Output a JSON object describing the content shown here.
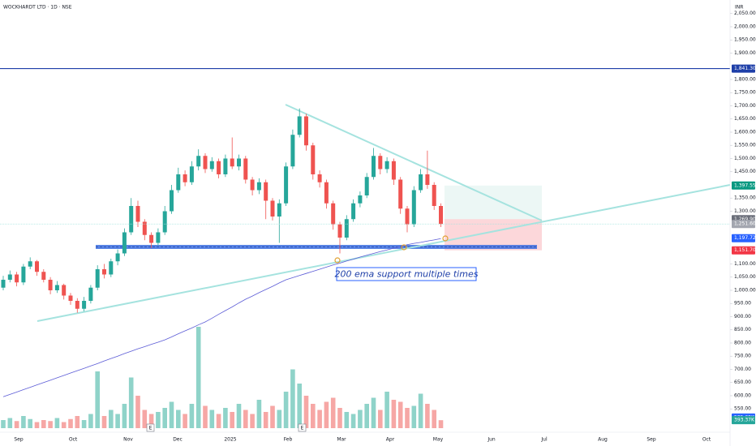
{
  "header": {
    "title": "WOCKHARDT LTD · 1D · NSE",
    "currency": "INR"
  },
  "chart_data": {
    "type": "candlestick",
    "open": [
      1010,
      1040,
      1060,
      1030,
      1090,
      1110,
      1070,
      1040,
      1000,
      1020,
      980,
      960,
      930,
      960,
      1010,
      1080,
      1060,
      1110,
      1140,
      1220,
      1320,
      1260,
      1210,
      1180,
      1220,
      1300,
      1380,
      1440,
      1410,
      1470,
      1510,
      1460,
      1490,
      1440,
      1500,
      1470,
      1500,
      1420,
      1380,
      1410,
      1340,
      1280,
      1330,
      1470,
      1590,
      1660,
      1550,
      1440,
      1410,
      1330,
      1250,
      1200,
      1270,
      1330,
      1360,
      1430,
      1510,
      1460,
      1490,
      1420,
      1310,
      1250,
      1380,
      1440,
      1400,
      1320
    ],
    "high": [
      1055,
      1075,
      1070,
      1100,
      1125,
      1115,
      1080,
      1050,
      1035,
      1025,
      990,
      970,
      975,
      1020,
      1095,
      1100,
      1120,
      1155,
      1235,
      1350,
      1340,
      1270,
      1220,
      1235,
      1320,
      1400,
      1465,
      1455,
      1490,
      1535,
      1520,
      1505,
      1500,
      1515,
      1580,
      1515,
      1510,
      1430,
      1425,
      1420,
      1350,
      1345,
      1485,
      1610,
      1690,
      1670,
      1560,
      1455,
      1420,
      1340,
      1260,
      1285,
      1345,
      1375,
      1445,
      1540,
      1520,
      1505,
      1500,
      1430,
      1320,
      1395,
      1460,
      1530,
      1410,
      1330
    ],
    "low": [
      1000,
      1030,
      1015,
      1020,
      1080,
      1055,
      1030,
      985,
      990,
      965,
      945,
      915,
      920,
      950,
      1000,
      1045,
      1050,
      1095,
      1130,
      1210,
      1240,
      1190,
      1160,
      1170,
      1210,
      1290,
      1370,
      1395,
      1400,
      1455,
      1445,
      1450,
      1425,
      1430,
      1460,
      1455,
      1405,
      1360,
      1365,
      1270,
      1265,
      1180,
      1320,
      1460,
      1580,
      1530,
      1420,
      1390,
      1310,
      1230,
      1140,
      1190,
      1260,
      1315,
      1350,
      1420,
      1440,
      1445,
      1400,
      1290,
      1220,
      1240,
      1370,
      1385,
      1305,
      1240
    ],
    "close": [
      1040,
      1060,
      1030,
      1090,
      1110,
      1070,
      1040,
      1000,
      1020,
      980,
      960,
      930,
      960,
      1010,
      1080,
      1060,
      1110,
      1140,
      1220,
      1320,
      1260,
      1210,
      1180,
      1220,
      1300,
      1380,
      1440,
      1410,
      1470,
      1510,
      1460,
      1490,
      1440,
      1500,
      1470,
      1500,
      1420,
      1380,
      1410,
      1340,
      1280,
      1330,
      1470,
      1590,
      1660,
      1550,
      1440,
      1410,
      1330,
      1250,
      1200,
      1270,
      1330,
      1360,
      1430,
      1510,
      1460,
      1490,
      1420,
      1310,
      1250,
      1380,
      1440,
      1400,
      1320,
      1251.6
    ],
    "up_color": "#26a69a",
    "down_color": "#ef5350",
    "ema": {
      "color": "#5b5bd6",
      "values": [
        596,
        605,
        614,
        623,
        632,
        641,
        650,
        659,
        668,
        677,
        686,
        695,
        704,
        713,
        722,
        732,
        741,
        750,
        760,
        769,
        778,
        786,
        795,
        803,
        812,
        823,
        835,
        846,
        857,
        869,
        880,
        894,
        909,
        923,
        937,
        952,
        966,
        978,
        991,
        1003,
        1015,
        1028,
        1040,
        1048,
        1056,
        1064,
        1072,
        1080,
        1088,
        1096,
        1103,
        1111,
        1118,
        1126,
        1133,
        1140,
        1147,
        1153,
        1160,
        1166,
        1173,
        1178,
        1182,
        1187,
        1191,
        1196
      ]
    },
    "volume": {
      "up_color": "#8fd3c9",
      "down_color": "#f6a7a5",
      "ylim": [
        0,
        6000
      ],
      "values": [
        400,
        500,
        350,
        600,
        450,
        300,
        400,
        350,
        500,
        300,
        450,
        600,
        400,
        700,
        2800,
        600,
        900,
        700,
        1200,
        2500,
        1600,
        900,
        700,
        800,
        1000,
        1300,
        900,
        700,
        1200,
        5000,
        1100,
        900,
        700,
        1000,
        800,
        1200,
        900,
        700,
        1400,
        800,
        1100,
        900,
        1800,
        2900,
        2200,
        1600,
        1200,
        900,
        1300,
        1500,
        1000,
        800,
        700,
        900,
        1200,
        1500,
        900,
        1800,
        1400,
        1300,
        1000,
        1100,
        1700,
        1200,
        900,
        393.37
      ],
      "last_label": "393.37K",
      "ma_value": 525.62,
      "ma_label": "525.62K",
      "ma_color": "#2962ff"
    },
    "ylim": [
      476.9,
      2101.5
    ],
    "yticks": [
      {
        "value": 550,
        "label": "550.00"
      },
      {
        "value": 600,
        "label": "600.00"
      },
      {
        "value": 650,
        "label": "650.00"
      },
      {
        "value": 700,
        "label": "700.00"
      },
      {
        "value": 750,
        "label": "750.00"
      },
      {
        "value": 800,
        "label": "800.00"
      },
      {
        "value": 850,
        "label": "850.00"
      },
      {
        "value": 900,
        "label": "900.00"
      },
      {
        "value": 950,
        "label": "950.00"
      },
      {
        "value": 1000,
        "label": "1,000.00"
      },
      {
        "value": 1050,
        "label": "1,050.00"
      },
      {
        "value": 1100,
        "label": "1,100.00"
      },
      {
        "value": 1300,
        "label": "1,300.00"
      },
      {
        "value": 1350,
        "label": "1,350.00"
      },
      {
        "value": 1450,
        "label": "1,450.00"
      },
      {
        "value": 1500,
        "label": "1,500.00"
      },
      {
        "value": 1550,
        "label": "1,550.00"
      },
      {
        "value": 1600,
        "label": "1,600.00"
      },
      {
        "value": 1650,
        "label": "1,650.00"
      },
      {
        "value": 1700,
        "label": "1,700.00"
      },
      {
        "value": 1750,
        "label": "1,750.00"
      },
      {
        "value": 1800,
        "label": "1,800.00"
      },
      {
        "value": 1900,
        "label": "1,900.00"
      },
      {
        "value": 1950,
        "label": "1,950.00"
      },
      {
        "value": 2000,
        "label": "2,000.00"
      },
      {
        "value": 2050,
        "label": "2,050.00"
      }
    ],
    "x_labels": [
      "Sep",
      "Oct",
      "Nov",
      "Dec",
      "2025",
      "Feb",
      "Mar",
      "Apr",
      "May",
      "Jun",
      "Jul",
      "Aug",
      "Sep",
      "Oct"
    ],
    "price_lines": [
      {
        "value": 1841.3,
        "label": "1,841.30",
        "color": "#1e3fa8"
      },
      {
        "value": 1397.55,
        "label": "1,397.55",
        "color": "#089981"
      },
      {
        "value": 1269.9,
        "label": "1,269.90",
        "color": "#6b6f7a"
      },
      {
        "value": 1251.6,
        "label": "1,251.60",
        "color": "#a3a6af"
      },
      {
        "value": 1197.72,
        "label": "1,197.72",
        "color": "#2962ff"
      },
      {
        "value": 1151.7,
        "label": "1,151.70",
        "color": "#f23645"
      }
    ],
    "annotation": "200 ema support multiple times",
    "event_markers": [
      "E",
      "E"
    ],
    "grid": false
  }
}
